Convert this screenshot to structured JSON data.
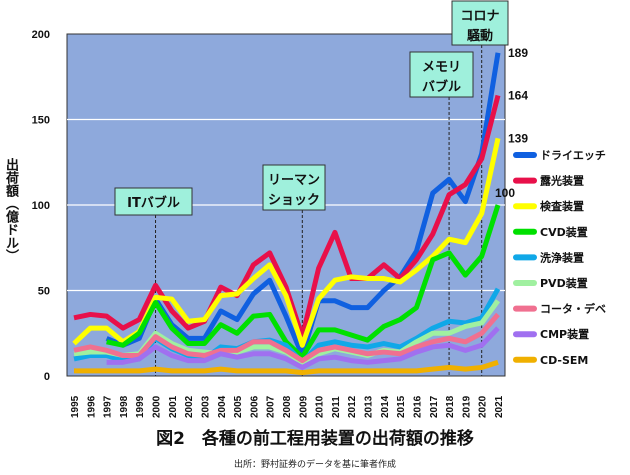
{
  "chart_data": {
    "type": "line",
    "title": "図2　各種の前工程用装置の出荷額の推移",
    "source": "出所：野村証券のデータを基に筆者作成",
    "ylabel": "出荷額（億ドル）",
    "xlabel": "",
    "ylim": [
      0,
      200
    ],
    "yticks": [
      0,
      50,
      100,
      150,
      200
    ],
    "grid": true,
    "legend_position": "right",
    "background": "#8ea9dc",
    "x": [
      "1995",
      "1996",
      "1997",
      "1998",
      "1999",
      "2000",
      "2001",
      "2002",
      "2003",
      "2004",
      "2005",
      "2006",
      "2007",
      "2008",
      "2009",
      "2010",
      "2011",
      "2012",
      "2013",
      "2014",
      "2015",
      "2016",
      "2017",
      "2018",
      "2019",
      "2020",
      "2021"
    ],
    "series": [
      {
        "name": "ドライエッチ",
        "color": "#1060e0",
        "values": [
          null,
          null,
          22,
          18,
          22,
          45,
          30,
          22,
          22,
          38,
          33,
          48,
          56,
          35,
          12,
          44,
          44,
          40,
          40,
          50,
          58,
          73,
          107,
          115,
          102,
          130,
          189
        ]
      },
      {
        "name": "露光装置",
        "color": "#e8104a",
        "values": [
          34,
          36,
          35,
          28,
          33,
          53,
          38,
          28,
          32,
          52,
          47,
          65,
          72,
          52,
          23,
          63,
          84,
          57,
          57,
          65,
          57,
          68,
          83,
          106,
          112,
          127,
          164
        ]
      },
      {
        "name": "検査装置",
        "color": "#ffff00",
        "values": [
          19,
          28,
          28,
          20,
          26,
          46,
          45,
          32,
          33,
          47,
          48,
          57,
          65,
          47,
          18,
          45,
          56,
          58,
          57,
          57,
          55,
          62,
          70,
          80,
          78,
          95,
          139
        ]
      },
      {
        "name": "CVD装置",
        "color": "#00e000",
        "values": [
          null,
          null,
          20,
          18,
          25,
          43,
          28,
          19,
          19,
          30,
          25,
          35,
          36,
          20,
          11,
          27,
          27,
          24,
          21,
          29,
          33,
          40,
          68,
          72,
          59,
          70,
          100
        ]
      },
      {
        "name": "洗浄装置",
        "color": "#10a8e8",
        "values": [
          10,
          12,
          12,
          9,
          10,
          22,
          16,
          12,
          10,
          17,
          16,
          20,
          21,
          18,
          8,
          18,
          20,
          18,
          17,
          19,
          17,
          22,
          28,
          32,
          31,
          34,
          51
        ]
      },
      {
        "name": "PVD装置",
        "color": "#a0f0a0",
        "values": [
          13,
          14,
          14,
          12,
          13,
          25,
          19,
          15,
          14,
          13,
          14,
          17,
          17,
          14,
          8,
          13,
          16,
          14,
          12,
          15,
          14,
          20,
          25,
          25,
          29,
          31,
          44
        ]
      },
      {
        "name": "コータ・デベ",
        "color": "#f07090",
        "values": [
          15,
          17,
          15,
          12,
          12,
          23,
          17,
          13,
          12,
          15,
          15,
          20,
          20,
          15,
          9,
          15,
          17,
          15,
          13,
          14,
          13,
          17,
          20,
          22,
          20,
          25,
          36
        ]
      },
      {
        "name": "CMP装置",
        "color": "#a070f0",
        "values": [
          null,
          null,
          8,
          8,
          10,
          17,
          12,
          9,
          9,
          13,
          11,
          13,
          13,
          10,
          5,
          10,
          11,
          9,
          8,
          9,
          10,
          14,
          17,
          18,
          15,
          18,
          28
        ]
      },
      {
        "name": "CD-SEM",
        "color": "#f0b000",
        "values": [
          3,
          3,
          3,
          3,
          3,
          4,
          3,
          3,
          3,
          4,
          3,
          3,
          3,
          3,
          2,
          3,
          3,
          3,
          3,
          3,
          3,
          3,
          4,
          5,
          4,
          5,
          8
        ]
      }
    ],
    "end_labels": [
      {
        "series": "ドライエッチ",
        "text": "189"
      },
      {
        "series": "露光装置",
        "text": "164"
      },
      {
        "series": "検査装置",
        "text": "139"
      },
      {
        "series": "CVD装置",
        "text": "100"
      }
    ],
    "annotations": [
      {
        "year": "2000",
        "lines": [
          "ITバブル"
        ]
      },
      {
        "year": "2009",
        "lines": [
          "リーマン",
          "ショック"
        ]
      },
      {
        "year": "2018",
        "lines": [
          "メモリ",
          "バブル"
        ]
      },
      {
        "year": "2020",
        "lines": [
          "コロナ",
          "騒動"
        ]
      }
    ]
  }
}
